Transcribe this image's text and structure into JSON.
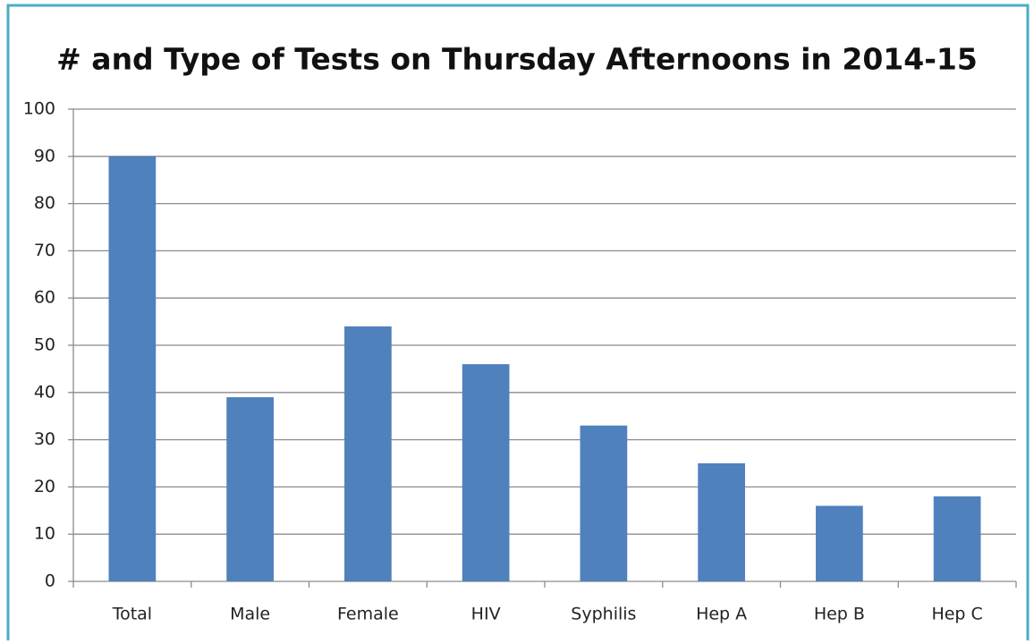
{
  "chart_data": {
    "type": "bar",
    "title": "# and Type of Tests on Thursday Afternoons in 2014-15",
    "categories": [
      "Total",
      "Male",
      "Female",
      "HIV",
      "Syphilis",
      "Hep A",
      "Hep B",
      "Hep C"
    ],
    "values": [
      90,
      39,
      54,
      46,
      33,
      25,
      16,
      18
    ],
    "color": "#4f81bd",
    "ylim": [
      0,
      100
    ],
    "yticks": [
      0,
      10,
      20,
      30,
      40,
      50,
      60,
      70,
      80,
      90,
      100
    ],
    "grid": true
  }
}
